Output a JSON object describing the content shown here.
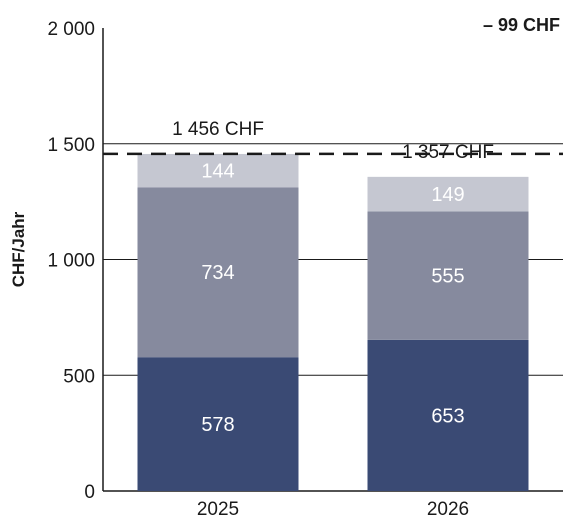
{
  "chart_data": {
    "type": "bar",
    "stacked": true,
    "categories": [
      "2025",
      "2026"
    ],
    "series": [
      {
        "values": [
          578,
          653
        ],
        "color": "#3a4a74"
      },
      {
        "values": [
          734,
          555
        ],
        "color": "#868a9e"
      },
      {
        "values": [
          144,
          149
        ],
        "color": "#c5c7d1"
      }
    ],
    "totals": [
      "1 456 CHF",
      "1 357 CHF"
    ],
    "ylabel": "CHF/Jahr",
    "ylim": [
      0,
      2000
    ],
    "yticks": [
      0,
      500,
      1000,
      1500,
      2000
    ],
    "ytick_labels": [
      "0",
      "500",
      "1 000",
      "1 500",
      "2 000"
    ],
    "grid": true,
    "reference_line": {
      "value": 1456,
      "style": "dashed"
    },
    "annotation": "– 99 CHF"
  }
}
